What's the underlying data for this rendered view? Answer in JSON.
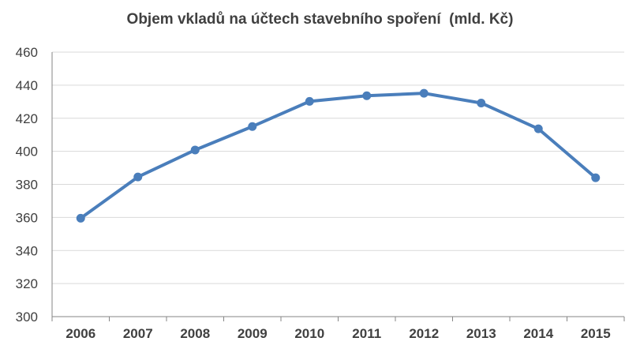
{
  "chart_data": {
    "type": "line",
    "title": "Objem vkladů na účtech stavebního spoření  (mld. Kč)",
    "xlabel": "",
    "ylabel": "",
    "categories": [
      "2006",
      "2007",
      "2008",
      "2009",
      "2010",
      "2011",
      "2012",
      "2013",
      "2014",
      "2015"
    ],
    "series": [
      {
        "values": [
          359.5,
          384.5,
          400.8,
          415.0,
          430.2,
          433.6,
          435.1,
          429.2,
          413.6,
          384.0
        ]
      }
    ],
    "ylim": [
      300,
      460
    ],
    "yticks": [
      300,
      320,
      340,
      360,
      380,
      400,
      420,
      440,
      460
    ],
    "grid": true,
    "legend": "none",
    "colors": {
      "line": "#4a7ebb",
      "grid": "#d9d9d9",
      "axis": "#868686",
      "text": "#404040"
    }
  }
}
